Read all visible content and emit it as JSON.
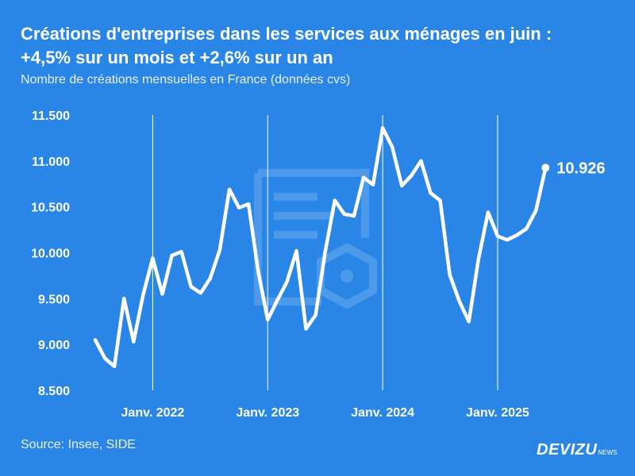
{
  "title": "Créations d'entreprises dans les services aux ménages en juin :",
  "title_line2": "+4,5% sur un mois et +2,6% sur un an",
  "subtitle": "Nombre de créations mensuelles en France (données cvs)",
  "source": "Source: Insee, SIDE",
  "brand": "DEVIZU",
  "brand_suffix": "NEWS",
  "colors": {
    "background": "#2a86e6",
    "line": "#ffffff",
    "grid": "#ffffff",
    "watermark": "#8fbff2"
  },
  "chart_data": {
    "type": "line",
    "title": "Créations d'entreprises dans les services aux ménages en juin : +4,5% sur un mois et +2,6% sur un an",
    "xlabel": "",
    "ylabel": "Nombre de créations mensuelles en France (données cvs)",
    "ylim": [
      8500,
      11500
    ],
    "yticks": [
      8500,
      9000,
      9500,
      10000,
      10500,
      11000,
      11500
    ],
    "ytick_labels": [
      "8.500",
      "9.000",
      "9.500",
      "10.000",
      "10.500",
      "11.000",
      "11.500"
    ],
    "xtick_labels": [
      "Janv. 2022",
      "Janv. 2023",
      "Janv. 2024",
      "Janv. 2025"
    ],
    "xtick_index": [
      6,
      18,
      30,
      42
    ],
    "x_start": "2021-07",
    "last_label": "10.926",
    "series": [
      {
        "name": "Créations mensuelles",
        "values": [
          9050,
          8850,
          8760,
          9500,
          9030,
          9540,
          9940,
          9550,
          9970,
          10010,
          9630,
          9560,
          9720,
          10030,
          10690,
          10490,
          10530,
          9800,
          9270,
          9480,
          9680,
          10020,
          9170,
          9320,
          10010,
          10570,
          10420,
          10400,
          10820,
          10740,
          11360,
          11150,
          10730,
          10840,
          11000,
          10650,
          10570,
          9760,
          9470,
          9250,
          9930,
          10440,
          10180,
          10140,
          10190,
          10260,
          10460,
          10926
        ]
      }
    ]
  }
}
